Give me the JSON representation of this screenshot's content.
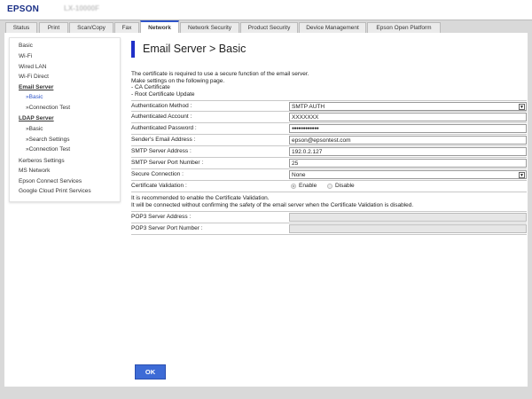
{
  "header": {
    "brand": "EPSON",
    "model": "LX-10000F"
  },
  "tabs": [
    "Status",
    "Print",
    "Scan/Copy",
    "Fax",
    "Network",
    "Network Security",
    "Product Security",
    "Device Management",
    "Epson Open Platform"
  ],
  "active_tab": "Network",
  "sidebar": {
    "items": [
      "Basic",
      "Wi-Fi",
      "Wired LAN",
      "Wi-Fi Direct",
      "Email Server",
      "»Basic",
      "»Connection Test",
      "LDAP Server",
      "»Basic",
      "»Search Settings",
      "»Connection Test",
      "Kerberos Settings",
      "MS Network",
      "Epson Connect Services",
      "Google Cloud Print Services"
    ]
  },
  "page": {
    "title": "Email Server > Basic",
    "intro": [
      "The certificate is required to use a secure function of the email server.",
      "Make settings on the following page.",
      "- CA Certificate",
      "- Root Certificate Update"
    ]
  },
  "form": {
    "auth_method": {
      "label": "Authentication Method :",
      "value": "SMTP AUTH"
    },
    "account": {
      "label": "Authenticated Account :",
      "value": "XXXXXXX"
    },
    "password": {
      "label": "Authenticated Password :",
      "value": "●●●●●●●●●●●●"
    },
    "sender": {
      "label": "Sender's Email Address :",
      "value": "epson@epsontest.com"
    },
    "smtp_addr": {
      "label": "SMTP Server Address :",
      "value": "192.0.2.127"
    },
    "smtp_port": {
      "label": "SMTP Server Port Number :",
      "value": "25"
    },
    "secure": {
      "label": "Secure Connection :",
      "value": "None"
    },
    "cert": {
      "label": "Certificate Validation :",
      "enable": "Enable",
      "disable": "Disable",
      "selected": "Enable"
    },
    "note": [
      "It is recommended to enable the Certificate Validation.",
      "It will be connected without confirming the safety of the email server when the Certificate Validation is disabled."
    ],
    "pop3_addr": {
      "label": "POP3 Server Address :",
      "value": ""
    },
    "pop3_port": {
      "label": "POP3 Server Port Number :",
      "value": ""
    }
  },
  "ok_label": "OK",
  "colors": {
    "accent": "#2e55c9",
    "brand": "#1a2f86",
    "ok_button": "#3d6bd6"
  }
}
